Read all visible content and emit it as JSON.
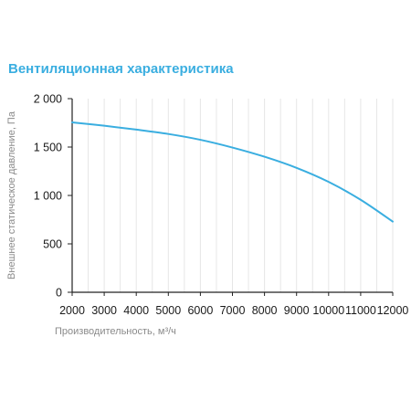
{
  "chart_data": {
    "type": "line",
    "title": "Вентиляционная характеристика",
    "xlabel": "Производительность, м³/ч",
    "ylabel": "Внешнее статическое давление, Па",
    "x_ticks": [
      2000,
      3000,
      4000,
      5000,
      6000,
      7000,
      8000,
      9000,
      10000,
      11000,
      12000
    ],
    "x_tick_labels": [
      "2000",
      "3000",
      "4000",
      "5000",
      "6000",
      "7000",
      "8000",
      "9000",
      "10000",
      "11000",
      "12000"
    ],
    "y_ticks": [
      0,
      500,
      1000,
      1500,
      2000
    ],
    "y_tick_labels": [
      "0",
      "500",
      "1 000",
      "1 500",
      "2 000"
    ],
    "xlim": [
      2000,
      12000
    ],
    "ylim": [
      0,
      2000
    ],
    "grid": "vertical",
    "series": [
      {
        "color": "#3aaee0",
        "x": [
          2000,
          3000,
          4000,
          5000,
          6000,
          7000,
          8000,
          9000,
          10000,
          11000,
          12000
        ],
        "y": [
          1755,
          1720,
          1680,
          1635,
          1575,
          1495,
          1400,
          1285,
          1140,
          955,
          730
        ]
      }
    ]
  },
  "colors": {
    "title": "#3aaee0",
    "line": "#3aaee0",
    "axis": "#222222",
    "grid": "#e6e6e6",
    "axis_label": "#8a8a8a"
  }
}
